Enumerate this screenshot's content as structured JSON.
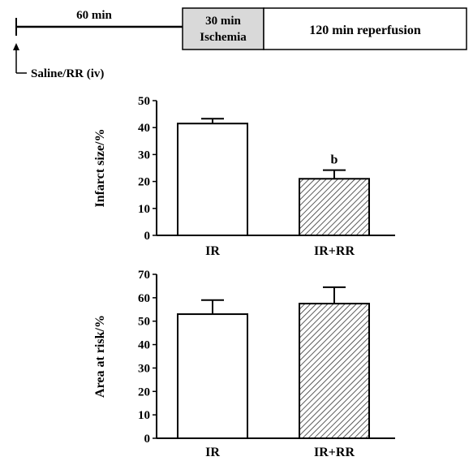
{
  "protocol": {
    "pre_label": "60 min",
    "ischemia_label_line1": "30 min",
    "ischemia_label_line2": "Ischemia",
    "reperfusion_label": "120 min reperfusion",
    "injection_label": "Saline/RR (iv)",
    "ischemia_fill": "#d9d9d9"
  },
  "chart_data": [
    {
      "type": "bar",
      "categories": [
        "IR",
        "IR+RR"
      ],
      "values": [
        41.5,
        21.0
      ],
      "errors": [
        1.8,
        3.2
      ],
      "annotations": [
        "",
        "b"
      ],
      "xlabel": "",
      "ylabel": "Infarct size/%",
      "ylim": [
        0,
        50
      ],
      "yticks": [
        0,
        10,
        20,
        30,
        40,
        50
      ],
      "bar_styles": [
        "open",
        "hatched"
      ],
      "grid": false
    },
    {
      "type": "bar",
      "categories": [
        "IR",
        "IR+RR"
      ],
      "values": [
        53.0,
        57.5
      ],
      "errors": [
        6.0,
        7.0
      ],
      "annotations": [
        "",
        ""
      ],
      "xlabel": "",
      "ylabel": "Area at risk/%",
      "ylim": [
        0,
        70
      ],
      "yticks": [
        0,
        10,
        20,
        30,
        40,
        50,
        60,
        70
      ],
      "bar_styles": [
        "open",
        "hatched"
      ],
      "grid": false
    }
  ]
}
